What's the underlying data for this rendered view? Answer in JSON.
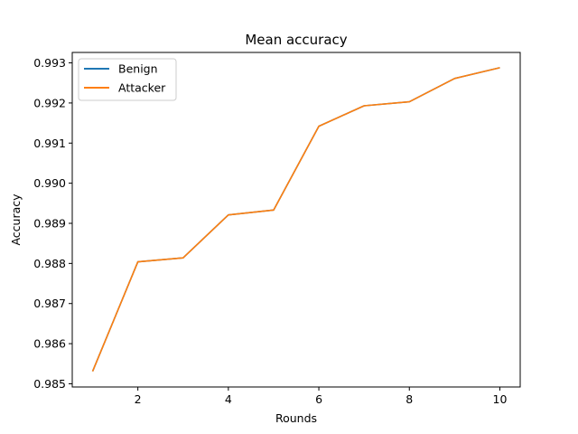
{
  "chart_data": {
    "type": "line",
    "title": "Mean accuracy",
    "xlabel": "Rounds",
    "ylabel": "Accuracy",
    "x": [
      1,
      2,
      3,
      4,
      5,
      6,
      7,
      8,
      9,
      10
    ],
    "xlim": [
      0.55,
      10.45
    ],
    "ylim": [
      0.98492,
      0.99326
    ],
    "xticks": [
      2,
      4,
      6,
      8,
      10
    ],
    "yticks": [
      0.985,
      0.986,
      0.987,
      0.988,
      0.989,
      0.99,
      0.991,
      0.992,
      0.993
    ],
    "ytick_labels": [
      "0.985",
      "0.986",
      "0.987",
      "0.988",
      "0.989",
      "0.990",
      "0.991",
      "0.992",
      "0.993"
    ],
    "grid": false,
    "legend_position": "upper-left",
    "series": [
      {
        "name": "Benign",
        "color": "#1f77b4",
        "values": [
          0.98531,
          0.98804,
          0.98814,
          0.98921,
          0.98933,
          0.99142,
          0.99193,
          0.99203,
          0.99261,
          0.99288
        ]
      },
      {
        "name": "Attacker",
        "color": "#ff7f0e",
        "values": [
          0.98531,
          0.98804,
          0.98814,
          0.98921,
          0.98933,
          0.99142,
          0.99193,
          0.99203,
          0.99261,
          0.99288
        ]
      }
    ]
  }
}
